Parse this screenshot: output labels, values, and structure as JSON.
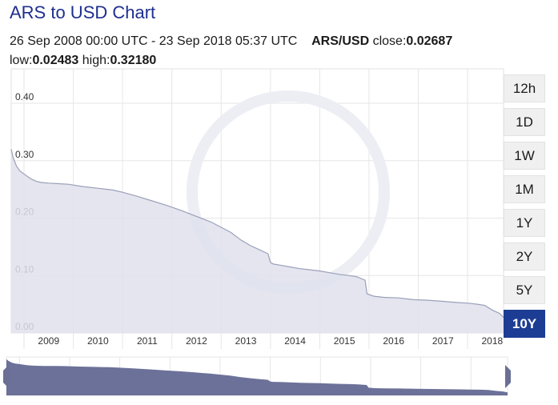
{
  "header": {
    "title": "ARS to USD Chart",
    "period": "26 Sep 2008 00:00 UTC - 23 Sep 2018 05:37 UTC",
    "pair": "ARS/USD",
    "close_label": "close:",
    "close_value": "0.02687",
    "low_label": "low:",
    "low_value": "0.02483",
    "high_label": "high:",
    "high_value": "0.32180"
  },
  "range_buttons": [
    {
      "label": "12h",
      "active": false
    },
    {
      "label": "1D",
      "active": false
    },
    {
      "label": "1W",
      "active": false
    },
    {
      "label": "1M",
      "active": false
    },
    {
      "label": "1Y",
      "active": false
    },
    {
      "label": "2Y",
      "active": false
    },
    {
      "label": "5Y",
      "active": false
    },
    {
      "label": "10Y",
      "active": true
    }
  ],
  "chart_data": {
    "type": "area",
    "title": "",
    "xlabel": "",
    "ylabel": "",
    "xlim": [
      2008.74,
      2018.73
    ],
    "ylim": [
      0,
      0.46
    ],
    "y_ticks": [
      "0.00",
      "0.10",
      "0.20",
      "0.30",
      "0.40"
    ],
    "x_ticks": [
      "2009",
      "2010",
      "2011",
      "2012",
      "2013",
      "2014",
      "2015",
      "2016",
      "2017",
      "2018"
    ],
    "grid": true,
    "colors": {
      "fill": "#dfe1ec",
      "line": "#9aa0b8",
      "grid": "#e6e6e6",
      "navigator_fill": "#6c7199",
      "navigator_handle": "#6b6f94"
    },
    "series": [
      {
        "x": [
          2008.74,
          2008.78,
          2008.85,
          2008.92,
          2009.0,
          2009.08,
          2009.15,
          2009.25,
          2009.35,
          2009.5,
          2009.7,
          2009.9,
          2010.2,
          2010.5,
          2010.8,
          2011.0,
          2011.3,
          2011.6,
          2011.9,
          2012.2,
          2012.5,
          2012.8,
          2013.0,
          2013.2,
          2013.4,
          2013.6,
          2013.8,
          2013.95,
          2014.0,
          2014.06,
          2014.2,
          2014.4,
          2014.6,
          2014.8,
          2015.0,
          2015.2,
          2015.4,
          2015.6,
          2015.75,
          2015.92,
          2015.96,
          2016.1,
          2016.3,
          2016.6,
          2016.9,
          2017.2,
          2017.5,
          2017.8,
          2018.0,
          2018.2,
          2018.35,
          2018.5,
          2018.6,
          2018.65,
          2018.73
        ],
        "y": [
          0.32,
          0.305,
          0.29,
          0.282,
          0.277,
          0.272,
          0.268,
          0.264,
          0.262,
          0.261,
          0.26,
          0.259,
          0.255,
          0.252,
          0.249,
          0.245,
          0.238,
          0.23,
          0.222,
          0.213,
          0.203,
          0.193,
          0.184,
          0.175,
          0.162,
          0.152,
          0.144,
          0.138,
          0.123,
          0.12,
          0.118,
          0.115,
          0.112,
          0.11,
          0.108,
          0.105,
          0.102,
          0.1,
          0.098,
          0.092,
          0.068,
          0.064,
          0.062,
          0.061,
          0.058,
          0.057,
          0.055,
          0.053,
          0.052,
          0.05,
          0.048,
          0.04,
          0.036,
          0.034,
          0.027
        ]
      }
    ]
  }
}
